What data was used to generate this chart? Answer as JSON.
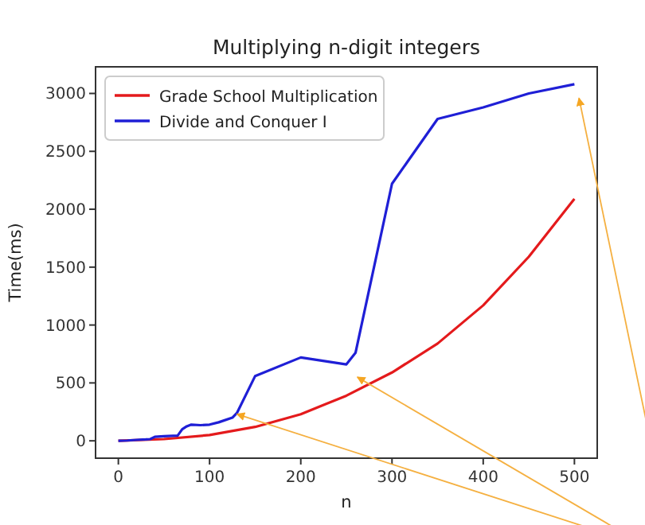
{
  "chart_data": {
    "type": "line",
    "title": "Multiplying n-digit integers",
    "xlabel": "n",
    "ylabel": "Time(ms)",
    "xlim": [
      -25,
      525
    ],
    "xticks": [
      0,
      100,
      200,
      300,
      400,
      500
    ],
    "ylim": [
      -150,
      3230
    ],
    "yticks": [
      0,
      500,
      1000,
      1500,
      2000,
      2500,
      3000
    ],
    "grid": false,
    "legend": "top left",
    "marker": "none",
    "line_style": "solid",
    "series": [
      {
        "name": "Grade School Multiplication",
        "color": "#e41a1c",
        "x": [
          0,
          50,
          100,
          150,
          200,
          250,
          300,
          350,
          400,
          450,
          500
        ],
        "values": [
          0,
          15,
          50,
          120,
          230,
          390,
          590,
          840,
          1170,
          1590,
          2090
        ]
      },
      {
        "name": "Divide and Conquer I",
        "color": "#1f1fd6",
        "x": [
          0,
          10,
          20,
          30,
          35,
          40,
          50,
          65,
          70,
          75,
          80,
          90,
          100,
          110,
          125,
          130,
          150,
          200,
          250,
          260,
          300,
          350,
          400,
          450,
          500
        ],
        "values": [
          0,
          3,
          8,
          12,
          15,
          35,
          40,
          45,
          100,
          125,
          140,
          135,
          140,
          160,
          200,
          240,
          560,
          720,
          660,
          760,
          2220,
          2780,
          2880,
          3000,
          3080
        ]
      }
    ]
  }
}
